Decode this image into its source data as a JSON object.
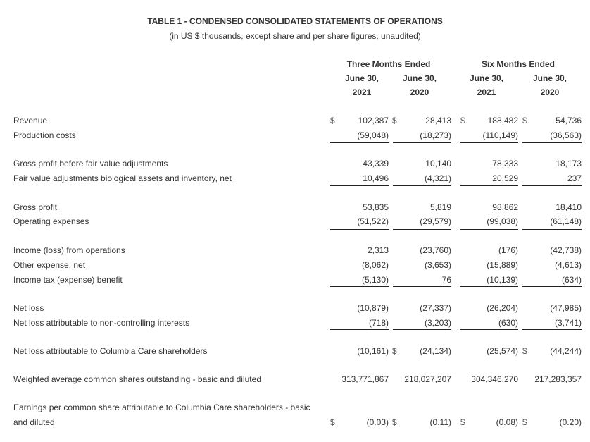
{
  "title": "TABLE 1 - CONDENSED CONSOLIDATED STATEMENTS OF OPERATIONS",
  "subtitle": "(in US $ thousands, except share and per share figures, unaudited)",
  "column_groups": [
    {
      "label": "Three Months Ended",
      "columns": [
        {
          "line1": "June 30,",
          "line2": "2021"
        },
        {
          "line1": "June 30,",
          "line2": "2020"
        }
      ]
    },
    {
      "label": "Six Months Ended",
      "columns": [
        {
          "line1": "June 30,",
          "line2": "2021"
        },
        {
          "line1": "June 30,",
          "line2": "2020"
        }
      ]
    }
  ],
  "currency_symbol": "$",
  "rows": [
    {
      "label": "Revenue",
      "values": [
        "102,387",
        "28,413",
        "188,482",
        "54,736"
      ],
      "dollar": [
        true,
        true,
        true,
        true
      ]
    },
    {
      "label": "Production costs",
      "values": [
        "(59,048)",
        "(18,273)",
        "(110,149)",
        "(36,563)"
      ],
      "dollar": [
        false,
        false,
        false,
        false
      ]
    },
    {
      "label": "Gross profit before fair value adjustments",
      "values": [
        "43,339",
        "10,140",
        "78,333",
        "18,173"
      ],
      "dollar": [
        false,
        false,
        false,
        false
      ]
    },
    {
      "label": "Fair value adjustments biological assets and inventory, net",
      "values": [
        "10,496",
        "(4,321)",
        "20,529",
        "237"
      ],
      "dollar": [
        false,
        false,
        false,
        false
      ]
    },
    {
      "label": "Gross profit",
      "values": [
        "53,835",
        "5,819",
        "98,862",
        "18,410"
      ],
      "dollar": [
        false,
        false,
        false,
        false
      ]
    },
    {
      "label": "Operating expenses",
      "values": [
        "(51,522)",
        "(29,579)",
        "(99,038)",
        "(61,148)"
      ],
      "dollar": [
        false,
        false,
        false,
        false
      ]
    },
    {
      "label": "Income (loss) from operations",
      "values": [
        "2,313",
        "(23,760)",
        "(176)",
        "(42,738)"
      ],
      "dollar": [
        false,
        false,
        false,
        false
      ]
    },
    {
      "label": "Other expense, net",
      "values": [
        "(8,062)",
        "(3,653)",
        "(15,889)",
        "(4,613)"
      ],
      "dollar": [
        false,
        false,
        false,
        false
      ]
    },
    {
      "label": "Income tax (expense) benefit",
      "values": [
        "(5,130)",
        "76",
        "(10,139)",
        "(634)"
      ],
      "dollar": [
        false,
        false,
        false,
        false
      ]
    },
    {
      "label": "Net loss",
      "values": [
        "(10,879)",
        "(27,337)",
        "(26,204)",
        "(47,985)"
      ],
      "dollar": [
        false,
        false,
        false,
        false
      ]
    },
    {
      "label": "Net loss attributable to non-controlling interests",
      "values": [
        "(718)",
        "(3,203)",
        "(630)",
        "(3,741)"
      ],
      "dollar": [
        false,
        false,
        false,
        false
      ]
    },
    {
      "label": "Net loss attributable to Columbia Care shareholders",
      "values": [
        "(10,161)",
        "(24,134)",
        "(25,574)",
        "(44,244)"
      ],
      "dollar": [
        false,
        true,
        false,
        true
      ]
    },
    {
      "label": "Weighted average common shares outstanding - basic and diluted",
      "values": [
        "313,771,867",
        "218,027,207",
        "304,346,270",
        "217,283,357"
      ],
      "dollar": [
        false,
        false,
        false,
        false
      ]
    },
    {
      "label_line1": "Earnings per common share attributable to Columbia Care shareholders - basic",
      "label": "and diluted",
      "values": [
        "(0.03)",
        "(0.11)",
        "(0.08)",
        "(0.20)"
      ],
      "dollar": [
        true,
        true,
        true,
        true
      ]
    }
  ]
}
